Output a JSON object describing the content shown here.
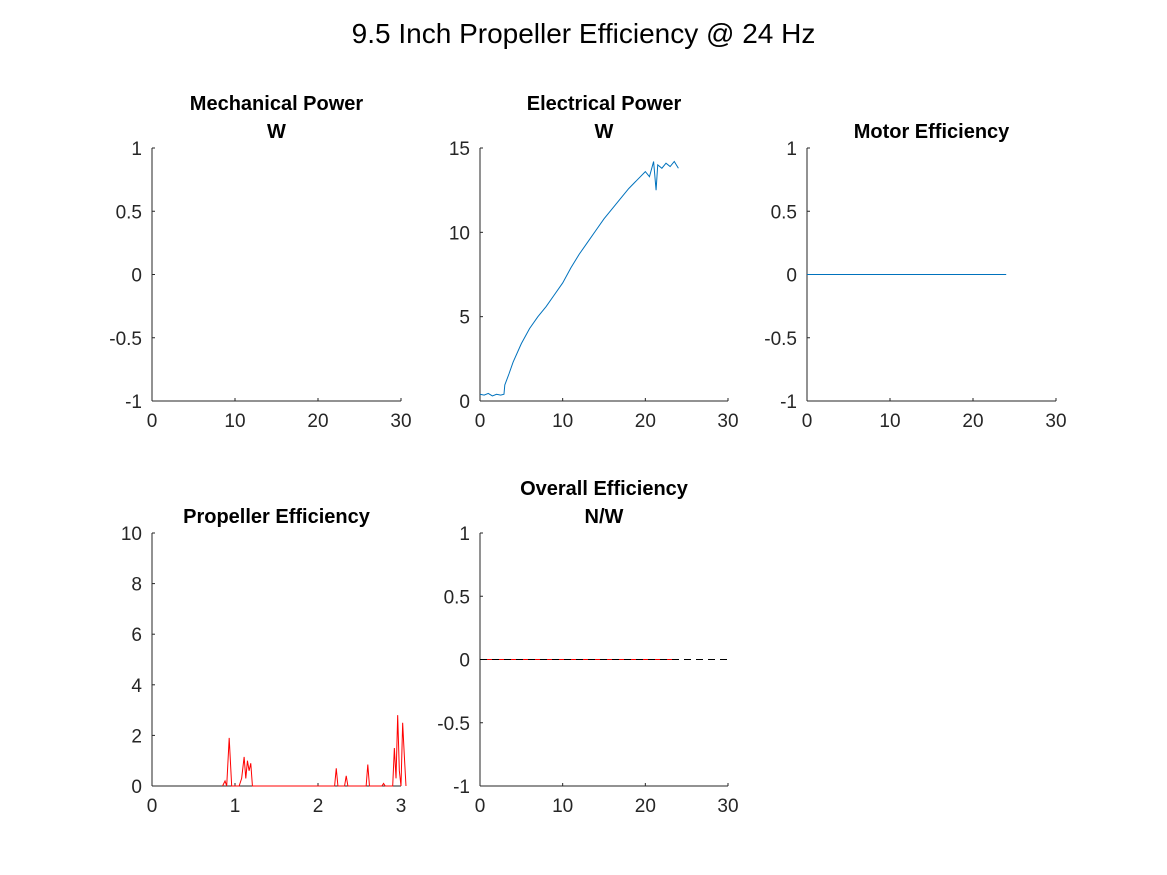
{
  "figure": {
    "title": "9.5 Inch Propeller Efficiency @ 24 Hz"
  },
  "chart_data": [
    {
      "type": "line",
      "title": [
        "Mechanical Power",
        "W"
      ],
      "xlabel": "",
      "ylabel": "",
      "xlim": [
        0,
        30
      ],
      "ylim": [
        -1,
        1
      ],
      "xticks": [
        "0",
        "10",
        "20",
        "30"
      ],
      "yticks": [
        "-1",
        "-0.5",
        "0",
        "0.5",
        "1"
      ],
      "grid": false,
      "series": []
    },
    {
      "type": "line",
      "title": [
        "Electrical Power",
        "W"
      ],
      "xlabel": "",
      "ylabel": "",
      "xlim": [
        0,
        30
      ],
      "ylim": [
        0,
        15
      ],
      "xticks": [
        "0",
        "10",
        "20",
        "30"
      ],
      "yticks": [
        "0",
        "5",
        "10",
        "15"
      ],
      "grid": false,
      "series": [
        {
          "color": "#0072BD",
          "x": [
            0,
            0.5,
            1.0,
            1.5,
            2.0,
            2.5,
            2.9,
            3.0,
            3.5,
            4,
            5,
            6,
            7,
            8,
            9,
            10,
            11,
            12,
            13,
            14,
            15,
            16,
            17,
            18,
            19,
            20,
            20.5,
            21,
            21.3,
            21.5,
            22,
            22.5,
            23,
            23.5,
            24
          ],
          "y": [
            0.4,
            0.35,
            0.45,
            0.3,
            0.4,
            0.35,
            0.4,
            0.95,
            1.6,
            2.3,
            3.4,
            4.3,
            5.0,
            5.6,
            6.3,
            7.0,
            7.9,
            8.7,
            9.4,
            10.1,
            10.8,
            11.4,
            12.0,
            12.6,
            13.1,
            13.6,
            13.3,
            14.2,
            12.5,
            14.0,
            13.8,
            14.1,
            13.9,
            14.2,
            13.8
          ]
        }
      ]
    },
    {
      "type": "line",
      "title": [
        "Motor Efficiency"
      ],
      "xlabel": "",
      "ylabel": "",
      "xlim": [
        0,
        30
      ],
      "ylim": [
        -1,
        1
      ],
      "xticks": [
        "0",
        "10",
        "20",
        "30"
      ],
      "yticks": [
        "-1",
        "-0.5",
        "0",
        "0.5",
        "1"
      ],
      "grid": false,
      "series": [
        {
          "color": "#0072BD",
          "x": [
            0,
            24
          ],
          "y": [
            0,
            0
          ]
        }
      ]
    },
    {
      "type": "line",
      "title": [
        "Propeller Efficiency"
      ],
      "xlabel": "",
      "ylabel": "",
      "xlim": [
        0,
        3
      ],
      "ylim": [
        0,
        10
      ],
      "xticks": [
        "0",
        "1",
        "2",
        "3"
      ],
      "yticks": [
        "0",
        "2",
        "4",
        "6",
        "8",
        "10"
      ],
      "grid": false,
      "series": [
        {
          "color": "#FF0000",
          "x": [
            0.85,
            0.88,
            0.9,
            0.93,
            0.96,
            0.99,
            1.05,
            1.08,
            1.11,
            1.13,
            1.15,
            1.17,
            1.19,
            1.21,
            2.2,
            2.22,
            2.24,
            2.32,
            2.34,
            2.36,
            2.58,
            2.6,
            2.62,
            2.77,
            2.79,
            2.81,
            2.9,
            2.92,
            2.94,
            2.96,
            2.98,
            3.0,
            3.02,
            3.04,
            3.06
          ],
          "y": [
            0,
            0.2,
            0,
            1.9,
            0,
            0,
            0,
            0.3,
            1.15,
            0.3,
            1.0,
            0.6,
            0.9,
            0,
            0,
            0.7,
            0,
            0,
            0.4,
            0,
            0,
            0.85,
            0,
            0,
            0.1,
            0,
            0,
            1.5,
            0.3,
            2.8,
            0.6,
            0,
            2.5,
            1.2,
            0
          ]
        }
      ]
    },
    {
      "type": "line",
      "title": [
        "Overall Efficiency",
        "N/W"
      ],
      "xlabel": "",
      "ylabel": "",
      "xlim": [
        0,
        30
      ],
      "ylim": [
        -1,
        1
      ],
      "xticks": [
        "0",
        "10",
        "20",
        "30"
      ],
      "yticks": [
        "-1",
        "-0.5",
        "0",
        "0.5",
        "1"
      ],
      "grid": false,
      "series": [
        {
          "color": "#FF0000",
          "style": "solid",
          "x": [
            0,
            24
          ],
          "y": [
            0,
            0
          ]
        },
        {
          "color": "#000000",
          "style": "dashed",
          "x": [
            0,
            30
          ],
          "y": [
            0,
            0
          ]
        }
      ]
    }
  ]
}
